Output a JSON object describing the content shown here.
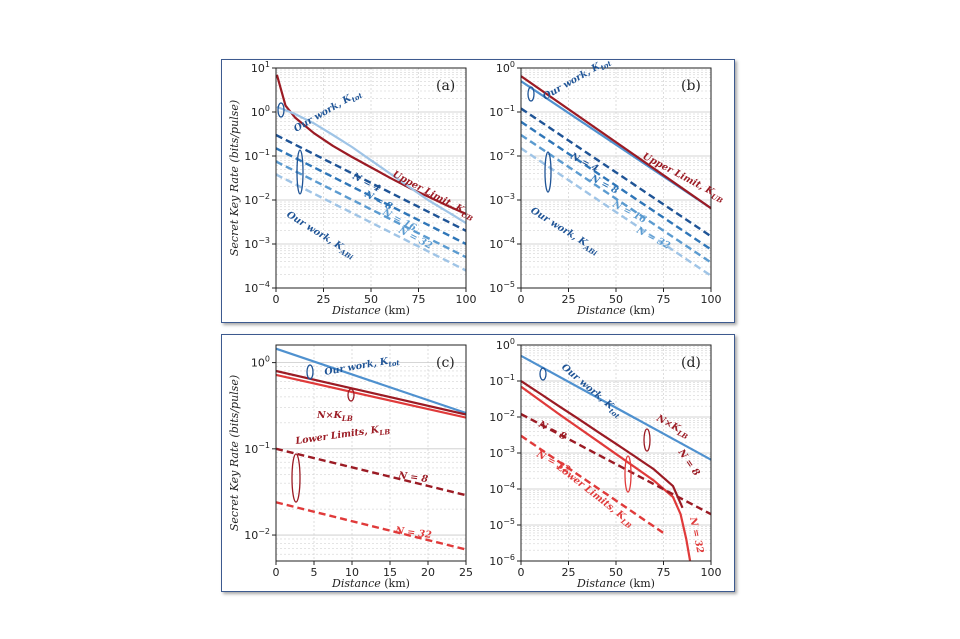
{
  "colors": {
    "dark_red": "#9b1b24",
    "red": "#e03a3a",
    "dark_blue": "#1f5496",
    "mid_blue": "#2f76b8",
    "light_blue": "#5b9bd0",
    "pale_blue": "#9fc4e6",
    "kt_blue": "#4f91cf",
    "grid": "#c9c9c9",
    "frame": "#3d5a8f"
  },
  "chart_data": [
    {
      "panel": "a",
      "type": "line",
      "yscale": "log",
      "xlim": [
        0,
        100
      ],
      "ylim": [
        0.0001,
        10
      ],
      "xticks": [
        "0",
        "25",
        "50",
        "75",
        "100"
      ],
      "yticks": [
        "10^1",
        "10^0",
        "10^-1",
        "10^-2",
        "10^-3",
        "10^-4"
      ],
      "xlabel": "Distance (km)",
      "ylabel": "Secret Key Rate (bits/pulse)",
      "label": "(a)",
      "series": [
        {
          "name": "Upper Limit, K_UB",
          "color": "dark_red",
          "style": "solid",
          "x": [
            0.5,
            5,
            10,
            20,
            30,
            40,
            50,
            60,
            70,
            80,
            90,
            100
          ],
          "y": [
            7.0,
            1.4,
            0.75,
            0.33,
            0.17,
            0.095,
            0.055,
            0.032,
            0.019,
            0.012,
            0.0075,
            0.0048
          ]
        },
        {
          "name": "Our work, K_tot",
          "color": "pale_blue",
          "style": "solid",
          "x": [
            0.5,
            5,
            10,
            20,
            30,
            40,
            50,
            60,
            70,
            80,
            90,
            100
          ],
          "y": [
            1.3,
            1.1,
            0.9,
            0.55,
            0.3,
            0.16,
            0.08,
            0.04,
            0.02,
            0.01,
            0.0055,
            0.003
          ]
        },
        {
          "name": "N = 4",
          "color": "dark_blue",
          "style": "dashed",
          "x": [
            0,
            100
          ],
          "y": [
            0.3,
            0.002
          ]
        },
        {
          "name": "N = 8",
          "color": "mid_blue",
          "style": "dashed",
          "x": [
            0,
            100
          ],
          "y": [
            0.15,
            0.001
          ]
        },
        {
          "name": "N = 16",
          "color": "light_blue",
          "style": "dashed",
          "x": [
            0,
            100
          ],
          "y": [
            0.075,
            0.0005
          ]
        },
        {
          "name": "N = 32",
          "color": "pale_blue",
          "style": "dashed",
          "x": [
            0,
            100
          ],
          "y": [
            0.038,
            0.00025
          ]
        }
      ],
      "annotations": [
        {
          "text": "Our work, K_tot"
        },
        {
          "text": "Upper Limit, K_UB"
        },
        {
          "text": "N = 4"
        },
        {
          "text": "N = 8"
        },
        {
          "text": "N = 16"
        },
        {
          "text": "N = 32"
        },
        {
          "text": "Our work, K_AB_i"
        }
      ]
    },
    {
      "panel": "b",
      "type": "line",
      "yscale": "log",
      "xlim": [
        0,
        100
      ],
      "ylim": [
        1e-05,
        1
      ],
      "xticks": [
        "0",
        "25",
        "50",
        "75",
        "100"
      ],
      "yticks": [
        "10^0",
        "10^-1",
        "10^-2",
        "10^-3",
        "10^-4",
        "10^-5"
      ],
      "xlabel": "Distance (km)",
      "ylabel": "",
      "label": "(b)",
      "series": [
        {
          "name": "Our work, K_tot",
          "color": "kt_blue",
          "style": "solid",
          "x": [
            0,
            100
          ],
          "y": [
            0.5,
            0.00065
          ]
        },
        {
          "name": "Upper Limit, K_UB",
          "color": "dark_red",
          "style": "solid",
          "x": [
            0,
            100
          ],
          "y": [
            0.65,
            0.00065
          ]
        },
        {
          "name": "N = 4",
          "color": "dark_blue",
          "style": "dashed",
          "x": [
            0,
            100
          ],
          "y": [
            0.12,
            0.00015
          ]
        },
        {
          "name": "N = 8",
          "color": "mid_blue",
          "style": "dashed",
          "x": [
            0,
            100
          ],
          "y": [
            0.06,
            7.5e-05
          ]
        },
        {
          "name": "N = 16",
          "color": "light_blue",
          "style": "dashed",
          "x": [
            0,
            100
          ],
          "y": [
            0.03,
            3.8e-05
          ]
        },
        {
          "name": "N = 32",
          "color": "pale_blue",
          "style": "dashed",
          "x": [
            0,
            100
          ],
          "y": [
            0.015,
            1.9e-05
          ]
        }
      ],
      "annotations": [
        {
          "text": "Our work, K_tot"
        },
        {
          "text": "Upper Limit, K_UB"
        },
        {
          "text": "N = 4"
        },
        {
          "text": "N = 8"
        },
        {
          "text": "N = 16"
        },
        {
          "text": "N = 32"
        },
        {
          "text": "Our work, K_AB_i"
        }
      ]
    },
    {
      "panel": "c",
      "type": "line",
      "yscale": "log",
      "xlim": [
        0,
        25
      ],
      "ylim": [
        0.005,
        1.6
      ],
      "xticks": [
        "0",
        "5",
        "10",
        "15",
        "20",
        "25"
      ],
      "yticks": [
        "10^0",
        "10^-1",
        "10^-2"
      ],
      "xlabel": "Distance (km)",
      "ylabel": "Secret Key Rate (bits/pulse)",
      "label": "(c)",
      "series": [
        {
          "name": "Our work, K_tot",
          "color": "kt_blue",
          "style": "solid",
          "x": [
            0,
            25
          ],
          "y": [
            1.45,
            0.26
          ]
        },
        {
          "name": "N×K_LB (N = 8)",
          "color": "dark_red",
          "style": "solid",
          "x": [
            0,
            25
          ],
          "y": [
            0.8,
            0.25
          ]
        },
        {
          "name": "N×K_LB (N = 32)",
          "color": "red",
          "style": "solid",
          "x": [
            0,
            25
          ],
          "y": [
            0.72,
            0.23
          ]
        },
        {
          "name": "Lower Limits, K_LB, N = 8",
          "color": "dark_red",
          "style": "dashed",
          "x": [
            0,
            25
          ],
          "y": [
            0.1,
            0.029
          ]
        },
        {
          "name": "Lower Limits, K_LB, N = 32",
          "color": "red",
          "style": "dashed",
          "x": [
            0,
            25
          ],
          "y": [
            0.024,
            0.0068
          ]
        }
      ],
      "annotations": [
        {
          "text": "Our work, K_tot"
        },
        {
          "text": "N×K_LB"
        },
        {
          "text": "Lower Limits, K_LB"
        },
        {
          "text": "N = 8"
        },
        {
          "text": "N = 32"
        }
      ]
    },
    {
      "panel": "d",
      "type": "line",
      "yscale": "log",
      "xlim": [
        0,
        100
      ],
      "ylim": [
        1e-06,
        1
      ],
      "xticks": [
        "0",
        "25",
        "50",
        "75",
        "100"
      ],
      "yticks": [
        "10^0",
        "10^-1",
        "10^-2",
        "10^-3",
        "10^-4",
        "10^-5",
        "10^-6"
      ],
      "xlabel": "Distance (km)",
      "ylabel": "",
      "label": "(d)",
      "series": [
        {
          "name": "Our work, K_tot",
          "color": "kt_blue",
          "style": "solid",
          "x": [
            0,
            100
          ],
          "y": [
            0.5,
            0.00065
          ]
        },
        {
          "name": "N×K_LB (N = 8)",
          "color": "dark_red",
          "style": "solid",
          "x": [
            0,
            10,
            20,
            30,
            40,
            50,
            60,
            70,
            80,
            85
          ],
          "y": [
            0.1,
            0.045,
            0.02,
            0.009,
            0.004,
            0.0018,
            0.0008,
            0.00035,
            0.00012,
            3e-05
          ]
        },
        {
          "name": "N×K_LB (N = 32)",
          "color": "red",
          "style": "solid",
          "x": [
            0,
            20,
            40,
            60,
            70,
            80,
            84,
            87,
            89
          ],
          "y": [
            0.07,
            0.012,
            0.0022,
            0.0004,
            0.00017,
            6e-05,
            2e-05,
            4e-06,
            1e-06
          ]
        },
        {
          "name": "Lower Limits, K_LB, N = 8",
          "color": "dark_red",
          "style": "dashed",
          "x": [
            0,
            100
          ],
          "y": [
            0.012,
            2e-05
          ]
        },
        {
          "name": "Lower Limits, K_LB, N = 32",
          "color": "red",
          "style": "dashed",
          "x": [
            0,
            75
          ],
          "y": [
            0.003,
            6e-06
          ]
        }
      ],
      "annotations": [
        {
          "text": "Our work, K_tot"
        },
        {
          "text": "N×K_LB"
        },
        {
          "text": "N = 8"
        },
        {
          "text": "N = 8"
        },
        {
          "text": "N = 32"
        },
        {
          "text": "N = 32"
        },
        {
          "text": "Lower Limits, K_LB"
        }
      ]
    }
  ]
}
